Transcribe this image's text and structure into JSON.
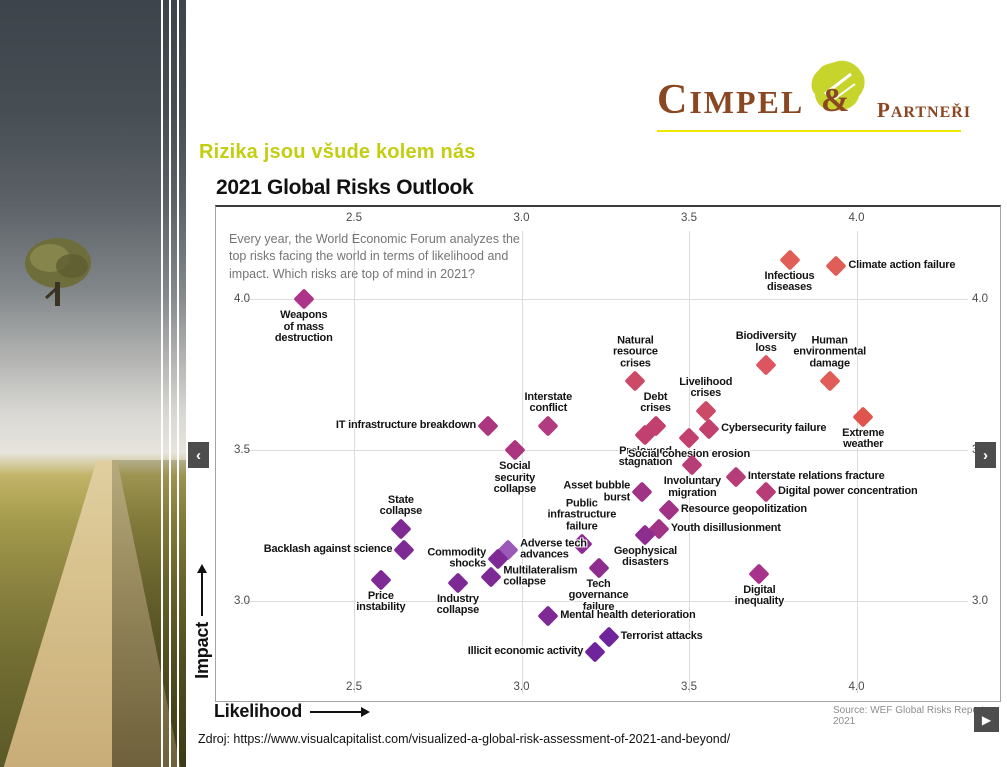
{
  "page": {
    "heading": "Rizika jsou všude kolem nás",
    "source_line": "Zdroj: https://www.visualcapitalist.com/visualized-a-global-risk-assessment-of-2021-and-beyond/"
  },
  "logo": {
    "name_initial": "C",
    "name_rest": "IMPEL",
    "amp": "&",
    "sub_initial": "P",
    "sub_rest": "ARTNEŘI"
  },
  "nav": {
    "prev": "‹",
    "next": "›",
    "play": "▶"
  },
  "chart_data": {
    "type": "scatter",
    "title": "2021 Global Risks Outlook",
    "description": "Every year, the World Economic Forum analyzes the\ntop risks facing the world in terms of likelihood and\nimpact. Which risks are top of mind in 2021?",
    "xlabel": "Likelihood",
    "ylabel": "Impact",
    "source": "Source: WEF Global Risks Report 2021",
    "xlim": [
      2.1,
      4.45
    ],
    "ylim": [
      2.65,
      4.3
    ],
    "grid": true,
    "x_ticks": [
      "2.5",
      "3.0",
      "3.5",
      "4.0"
    ],
    "y_ticks": [
      "4.0",
      "3.5",
      "3.0"
    ],
    "marker": "diamond",
    "points": [
      {
        "label": "Weapons\nof mass\ndestruction",
        "x": 2.35,
        "y": 4.0,
        "color": "#ad3488",
        "label_pos": "below"
      },
      {
        "label": "Infectious\ndiseases",
        "x": 3.8,
        "y": 4.13,
        "color": "#e05e57",
        "label_pos": "below"
      },
      {
        "label": "Climate action failure",
        "x": 3.94,
        "y": 4.11,
        "color": "#e05e57",
        "label_pos": "right"
      },
      {
        "label": "Natural\nresource\ncrises",
        "x": 3.34,
        "y": 3.73,
        "color": "#cc4a66",
        "label_pos": "above"
      },
      {
        "label": "Biodiversity\nloss",
        "x": 3.73,
        "y": 3.78,
        "color": "#dd5560",
        "label_pos": "above"
      },
      {
        "label": "Human\nenvironmental\ndamage",
        "x": 3.92,
        "y": 3.73,
        "color": "#e05e57",
        "label_pos": "above"
      },
      {
        "label": "Extreme\nweather",
        "x": 4.02,
        "y": 3.61,
        "color": "#e0544e",
        "label_pos": "below"
      },
      {
        "label": "Debt\ncrises",
        "x": 3.4,
        "y": 3.58,
        "color": "#c2406d",
        "label_pos": "above"
      },
      {
        "label": "Prolonged\nstagnation",
        "x": 3.37,
        "y": 3.55,
        "color": "#c2406d",
        "label_pos": "below"
      },
      {
        "label": "Livelihood\ncrises",
        "x": 3.55,
        "y": 3.63,
        "color": "#cc4a66",
        "label_pos": "above"
      },
      {
        "label": "Cybersecurity failure",
        "x": 3.56,
        "y": 3.57,
        "color": "#c2406d",
        "label_pos": "right"
      },
      {
        "label": "Social cohesion erosion",
        "x": 3.5,
        "y": 3.54,
        "color": "#c2406d",
        "label_pos": "below"
      },
      {
        "label": "IT infrastructure breakdown",
        "x": 2.9,
        "y": 3.58,
        "color": "#ab357f",
        "label_pos": "left"
      },
      {
        "label": "Interstate\nconflict",
        "x": 3.08,
        "y": 3.58,
        "color": "#b13b80",
        "label_pos": "above"
      },
      {
        "label": "Social\nsecurity\ncollapse",
        "x": 2.98,
        "y": 3.5,
        "color": "#ab357f",
        "label_pos": "below"
      },
      {
        "label": "Involuntary\nmigration",
        "x": 3.51,
        "y": 3.45,
        "color": "#b63d78",
        "label_pos": "below"
      },
      {
        "label": "Interstate relations fracture",
        "x": 3.64,
        "y": 3.41,
        "color": "#b63d78",
        "label_pos": "right"
      },
      {
        "label": "Digital power concentration",
        "x": 3.73,
        "y": 3.36,
        "color": "#b63d78",
        "label_pos": "right"
      },
      {
        "label": "Asset bubble\nburst",
        "x": 3.36,
        "y": 3.36,
        "color": "#a03386",
        "label_pos": "left"
      },
      {
        "label": "Resource geopolitization",
        "x": 3.44,
        "y": 3.3,
        "color": "#a03386",
        "label_pos": "right"
      },
      {
        "label": "Youth disillusionment",
        "x": 3.41,
        "y": 3.24,
        "color": "#a03386",
        "label_pos": "right"
      },
      {
        "label": "Geophysical\ndisasters",
        "x": 3.37,
        "y": 3.22,
        "color": "#8d2d90",
        "label_pos": "below"
      },
      {
        "label": "Public\ninfrastructure\nfailure",
        "x": 3.18,
        "y": 3.19,
        "color": "#8d2d90",
        "label_pos": "above"
      },
      {
        "label": "State\ncollapse",
        "x": 2.64,
        "y": 3.24,
        "color": "#7e2a94",
        "label_pos": "above"
      },
      {
        "label": "Backlash against science",
        "x": 2.65,
        "y": 3.17,
        "color": "#7e2a94",
        "label_pos": "left"
      },
      {
        "label": "Adverse tech\nadvances",
        "x": 2.96,
        "y": 3.17,
        "color": "#9b59b8",
        "label_pos": "right"
      },
      {
        "label": "Commodity\nshocks",
        "x": 2.93,
        "y": 3.14,
        "color": "#7e2a94",
        "label_pos": "left"
      },
      {
        "label": "Multilateralism\ncollapse",
        "x": 2.91,
        "y": 3.08,
        "color": "#7e2a94",
        "label_pos": "right"
      },
      {
        "label": "Tech\ngovernance\nfailure",
        "x": 3.23,
        "y": 3.11,
        "color": "#8d2d90",
        "label_pos": "below"
      },
      {
        "label": "Price\ninstability",
        "x": 2.58,
        "y": 3.07,
        "color": "#7e2a94",
        "label_pos": "below"
      },
      {
        "label": "Industry\ncollapse",
        "x": 2.81,
        "y": 3.06,
        "color": "#7e2a94",
        "label_pos": "below"
      },
      {
        "label": "Mental health deterioration",
        "x": 3.08,
        "y": 2.95,
        "color": "#7e2a94",
        "label_pos": "right"
      },
      {
        "label": "Digital\ninequality",
        "x": 3.71,
        "y": 3.09,
        "color": "#a8338b",
        "label_pos": "below"
      },
      {
        "label": "Terrorist attacks",
        "x": 3.26,
        "y": 2.88,
        "color": "#70249c",
        "label_pos": "right"
      },
      {
        "label": "Illicit economic activity",
        "x": 3.22,
        "y": 2.83,
        "color": "#70249c",
        "label_pos": "left"
      }
    ]
  }
}
